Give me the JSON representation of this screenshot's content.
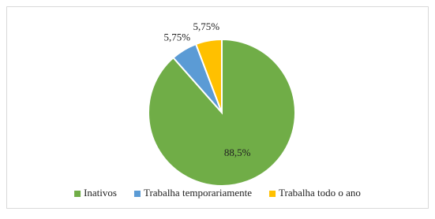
{
  "chart_data": {
    "type": "pie",
    "categories": [
      "Inativos",
      "Trabalha temporariamente",
      "Trabalha todo o ano"
    ],
    "values": [
      88.5,
      5.75,
      5.75
    ],
    "value_labels": [
      "88,5%",
      "5,75%",
      "5,75%"
    ],
    "colors": [
      "#70ad47",
      "#5b9bd5",
      "#ffc000"
    ],
    "legend": "bottom"
  }
}
